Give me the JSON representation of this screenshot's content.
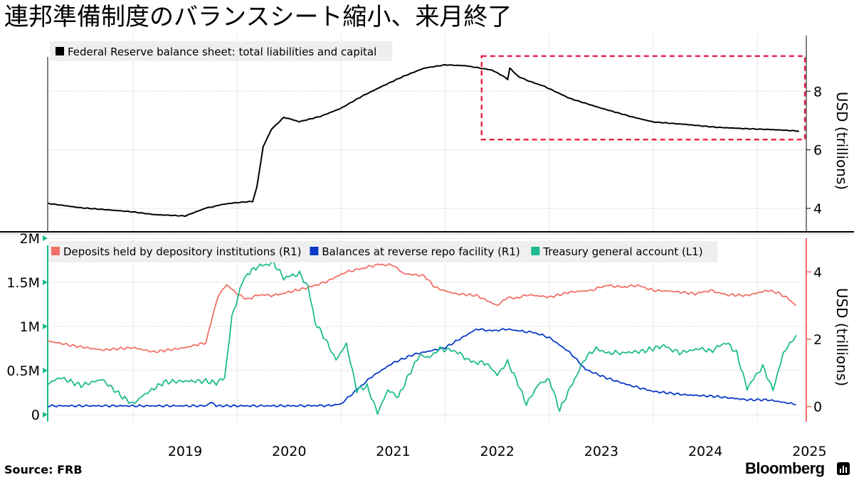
{
  "title": "連邦準備制度のバランスシート縮小、来月終了",
  "source": "Source:  FRB",
  "brand": "Bloomberg",
  "colors": {
    "balance_sheet": "#000000",
    "deposits": "#f07068",
    "reverse_repo": "#0a3bc8",
    "tga": "#1dbb8e",
    "highlight_box": "#e8264c",
    "grid": "#bfbfbf",
    "legend_bg": "#efefef"
  },
  "chart_data": [
    {
      "type": "line",
      "legend": "Federal Reserve balance sheet: total liabilities and capital",
      "ylabel": "USD (trillions)",
      "yticks": [
        4,
        6,
        8
      ],
      "ylim": [
        3.2,
        9.9
      ],
      "xlim": [
        2018.18,
        2025.47
      ],
      "xticks": [
        "2019",
        "2020",
        "2021",
        "2022",
        "2023",
        "2024",
        "2025"
      ],
      "annotation": "dashed red box highlighting Jul 2022 onward",
      "highlight_range": {
        "x": [
          2022.35,
          2025.47
        ],
        "y": [
          6.35,
          9.2
        ]
      },
      "series": [
        {
          "name": "Federal Reserve balance sheet: total liabilities and capital",
          "x": [
            2018.18,
            2018.5,
            2018.8,
            2019.0,
            2019.2,
            2019.5,
            2019.7,
            2019.75,
            2019.85,
            2019.95,
            2020.15,
            2020.19,
            2020.25,
            2020.33,
            2020.45,
            2020.6,
            2020.8,
            2021.0,
            2021.2,
            2021.4,
            2021.6,
            2021.8,
            2022.0,
            2022.2,
            2022.45,
            2022.55,
            2022.6,
            2022.62,
            2022.64,
            2022.7,
            2022.8,
            2022.95,
            2023.2,
            2023.5,
            2023.8,
            2024.0,
            2024.3,
            2024.6,
            2024.9,
            2025.2,
            2025.4
          ],
          "y": [
            4.17,
            4.02,
            3.94,
            3.88,
            3.79,
            3.74,
            4.01,
            4.04,
            4.13,
            4.18,
            4.24,
            4.72,
            6.1,
            6.7,
            7.11,
            6.96,
            7.14,
            7.42,
            7.83,
            8.18,
            8.51,
            8.79,
            8.9,
            8.87,
            8.72,
            8.53,
            8.4,
            8.79,
            8.72,
            8.51,
            8.35,
            8.17,
            7.75,
            7.42,
            7.12,
            6.95,
            6.87,
            6.77,
            6.72,
            6.68,
            6.64
          ]
        }
      ]
    },
    {
      "type": "line",
      "legend_entries": [
        "Deposits held by depository institutions (R1)",
        "Balances at reverse repo facility (R1)",
        "Treasury general account  (L1)"
      ],
      "left_axis": {
        "ticks": [
          "0",
          "0.5M",
          "1M",
          "1.5M",
          "2M"
        ],
        "ylim": [
          -0.08,
          2.0
        ],
        "unit": "millions"
      },
      "right_axis": {
        "label": "USD (trillions)",
        "ticks": [
          "0",
          "2",
          "4"
        ],
        "ylim": [
          -0.45,
          5.0
        ]
      },
      "xlim": [
        2018.18,
        2025.47
      ],
      "xticks": [
        "2019",
        "2020",
        "2021",
        "2022",
        "2023",
        "2024",
        "2025"
      ],
      "series": [
        {
          "name": "Deposits held by depository institutions (R1)",
          "axis": "right",
          "x": [
            2018.18,
            2018.4,
            2018.7,
            2019.0,
            2019.2,
            2019.5,
            2019.7,
            2019.75,
            2019.82,
            2019.9,
            2020.0,
            2020.1,
            2020.2,
            2020.35,
            2020.5,
            2020.7,
            2020.85,
            2020.95,
            2021.05,
            2021.2,
            2021.35,
            2021.5,
            2021.6,
            2021.8,
            2021.9,
            2021.98,
            2022.1,
            2022.3,
            2022.5,
            2022.6,
            2022.65,
            2022.8,
            2023.0,
            2023.2,
            2023.4,
            2023.55,
            2023.7,
            2023.85,
            2024.0,
            2024.2,
            2024.4,
            2024.55,
            2024.7,
            2024.9,
            2025.1,
            2025.2,
            2025.3,
            2025.37
          ],
          "y": [
            1.95,
            1.82,
            1.68,
            1.75,
            1.62,
            1.75,
            1.9,
            2.5,
            3.3,
            3.62,
            3.35,
            3.18,
            3.32,
            3.3,
            3.4,
            3.55,
            3.7,
            3.85,
            4.0,
            4.1,
            4.22,
            4.2,
            3.95,
            3.88,
            3.55,
            3.45,
            3.35,
            3.3,
            3.0,
            3.25,
            3.2,
            3.32,
            3.25,
            3.4,
            3.45,
            3.6,
            3.55,
            3.6,
            3.45,
            3.42,
            3.35,
            3.45,
            3.32,
            3.3,
            3.45,
            3.38,
            3.2,
            3.0
          ]
        },
        {
          "name": "Balances at reverse repo facility (R1)",
          "axis": "right",
          "x": [
            2018.18,
            2019.0,
            2019.7,
            2019.75,
            2019.8,
            2020.0,
            2020.5,
            2020.9,
            2021.0,
            2021.15,
            2021.3,
            2021.5,
            2021.7,
            2022.0,
            2022.3,
            2022.45,
            2022.6,
            2022.7,
            2022.85,
            2023.0,
            2023.2,
            2023.35,
            2023.55,
            2023.75,
            2024.0,
            2024.3,
            2024.6,
            2024.9,
            2025.1,
            2025.3,
            2025.37
          ],
          "y": [
            0.02,
            0.02,
            0.02,
            0.15,
            0.02,
            0.02,
            0.02,
            0.03,
            0.08,
            0.5,
            0.9,
            1.3,
            1.55,
            1.75,
            2.3,
            2.25,
            2.3,
            2.25,
            2.2,
            2.05,
            1.6,
            1.1,
            0.85,
            0.65,
            0.45,
            0.35,
            0.3,
            0.2,
            0.2,
            0.1,
            0.05
          ]
        },
        {
          "name": "Treasury general account  (L1)",
          "axis": "left",
          "x": [
            2018.18,
            2018.3,
            2018.5,
            2018.7,
            2018.9,
            2019.0,
            2019.1,
            2019.3,
            2019.5,
            2019.7,
            2019.8,
            2019.88,
            2019.95,
            2020.05,
            2020.1,
            2020.2,
            2020.35,
            2020.45,
            2020.6,
            2020.68,
            2020.75,
            2020.85,
            2020.95,
            2021.05,
            2021.15,
            2021.25,
            2021.35,
            2021.45,
            2021.55,
            2021.65,
            2021.75,
            2021.85,
            2021.95,
            2022.1,
            2022.25,
            2022.4,
            2022.5,
            2022.6,
            2022.7,
            2022.78,
            2022.9,
            2023.0,
            2023.1,
            2023.2,
            2023.35,
            2023.45,
            2023.55,
            2023.7,
            2023.9,
            2024.1,
            2024.25,
            2024.45,
            2024.55,
            2024.7,
            2024.8,
            2024.9,
            2025.05,
            2025.15,
            2025.25,
            2025.37
          ],
          "y": [
            0.35,
            0.42,
            0.33,
            0.4,
            0.2,
            0.12,
            0.22,
            0.37,
            0.38,
            0.38,
            0.36,
            0.42,
            1.1,
            1.5,
            1.6,
            1.68,
            1.72,
            1.55,
            1.6,
            1.45,
            1.05,
            0.85,
            0.62,
            0.8,
            0.28,
            0.32,
            0.02,
            0.28,
            0.2,
            0.45,
            0.67,
            0.65,
            0.75,
            0.72,
            0.6,
            0.58,
            0.45,
            0.6,
            0.35,
            0.12,
            0.35,
            0.4,
            0.05,
            0.3,
            0.65,
            0.75,
            0.7,
            0.7,
            0.72,
            0.78,
            0.7,
            0.75,
            0.72,
            0.82,
            0.7,
            0.3,
            0.55,
            0.28,
            0.7,
            0.9
          ]
        }
      ]
    }
  ]
}
